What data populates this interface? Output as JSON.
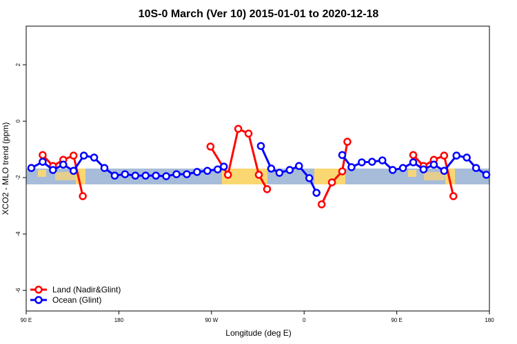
{
  "chart_data": {
    "type": "line",
    "title": "10S-0 March (Ver 10)   2015-01-01 to 2020-12-18",
    "x_label": "Longitude (deg E)",
    "y_label": "XCO2 - MLO trend (ppm)",
    "xlim": [
      90,
      540
    ],
    "xticks": [
      {
        "value": 90,
        "label": "90 E"
      },
      180,
      {
        "value": 270,
        "label": "90 W"
      },
      {
        "value": 360,
        "label": "0"
      },
      {
        "value": 450,
        "label": "90 E"
      },
      {
        "value": 540,
        "label": "180"
      }
    ],
    "ylim": [
      -6.73,
      3.37
    ],
    "yticks": [
      2,
      0,
      -2,
      -4,
      -6
    ],
    "legend": "bottom-left",
    "series": [
      {
        "name": "Land (Nadir&Glint)",
        "color": "#ff0000",
        "x": [
          106,
          116,
          126,
          136,
          145,
          null,
          269,
          286,
          296,
          306,
          316,
          324,
          null,
          377,
          387,
          397,
          402,
          null,
          466,
          476,
          486,
          496,
          505
        ],
        "values": [
          -1.2,
          -1.59,
          -1.37,
          -1.22,
          -2.66,
          null,
          -0.9,
          -1.9,
          -0.27,
          -0.44,
          -1.9,
          -2.41,
          null,
          -2.95,
          -2.17,
          -1.78,
          -0.73,
          null,
          -1.2,
          -1.59,
          -1.37,
          -1.22,
          -2.66
        ]
      },
      {
        "name": "Ocean (Glint)",
        "color": "#0000ff",
        "x": [
          95,
          106,
          116,
          126,
          136,
          146,
          156,
          166,
          176,
          186,
          196,
          206,
          216,
          226,
          236,
          246,
          256,
          266,
          276,
          282,
          null,
          318,
          328,
          336,
          346,
          355,
          365,
          372,
          null,
          397,
          406,
          416,
          426,
          436,
          446,
          456,
          466,
          476,
          486,
          496,
          508,
          518,
          527,
          537
        ],
        "values": [
          -1.66,
          -1.44,
          -1.73,
          -1.54,
          -1.76,
          -1.22,
          -1.29,
          -1.66,
          -1.93,
          -1.88,
          -1.93,
          -1.93,
          -1.93,
          -1.95,
          -1.88,
          -1.88,
          -1.8,
          -1.76,
          -1.71,
          -1.61,
          null,
          -0.88,
          -1.68,
          -1.83,
          -1.73,
          -1.59,
          -2.02,
          -2.54,
          null,
          -1.2,
          -1.63,
          -1.46,
          -1.44,
          -1.39,
          -1.73,
          -1.66,
          -1.46,
          -1.71,
          -1.54,
          -1.76,
          -1.22,
          -1.29,
          -1.66,
          -1.9
        ]
      }
    ]
  }
}
